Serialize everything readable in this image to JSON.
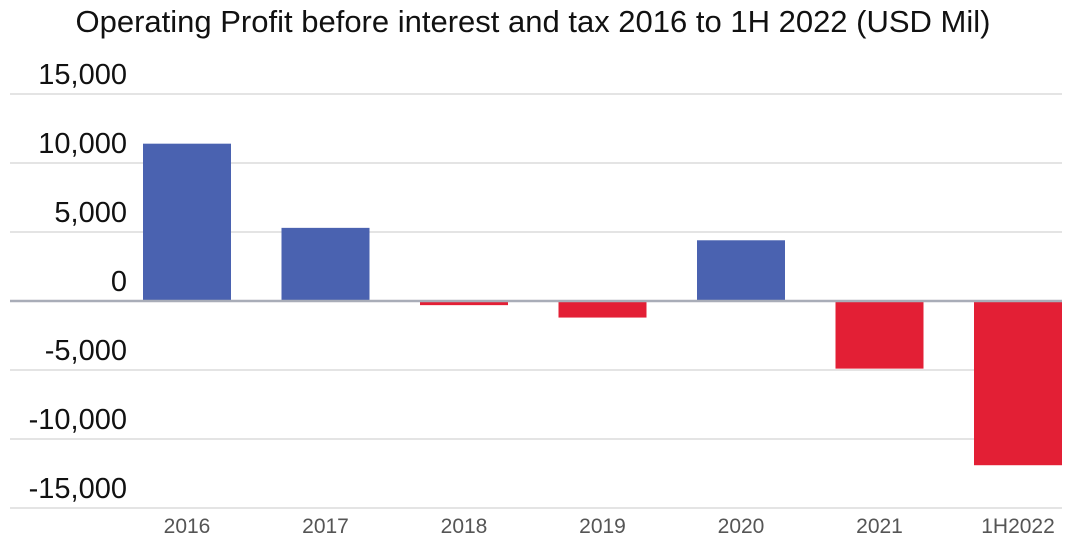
{
  "chart_data": {
    "type": "bar",
    "title": "Operating Profit before interest and tax 2016 to 1H 2022 (USD Mil)",
    "xlabel": "",
    "ylabel": "",
    "categories": [
      "2016",
      "2017",
      "2018",
      "2019",
      "2020",
      "2021",
      "1H2022"
    ],
    "values": [
      11400,
      5300,
      -300,
      -1200,
      4400,
      -4900,
      -11900
    ],
    "ylim": [
      -15000,
      15000
    ],
    "yticks": [
      15000,
      10000,
      5000,
      0,
      -5000,
      -10000,
      -15000
    ],
    "ytick_labels": [
      "15,000",
      "10,000",
      "5,000",
      "0",
      "-5,000",
      "-10,000",
      "-15,000"
    ],
    "grid": true,
    "legend": "none",
    "colors": {
      "positive": "#4a62b0",
      "negative": "#e31f35",
      "grid": "#d4d4d4",
      "zero_line": "#a9adb8"
    }
  }
}
